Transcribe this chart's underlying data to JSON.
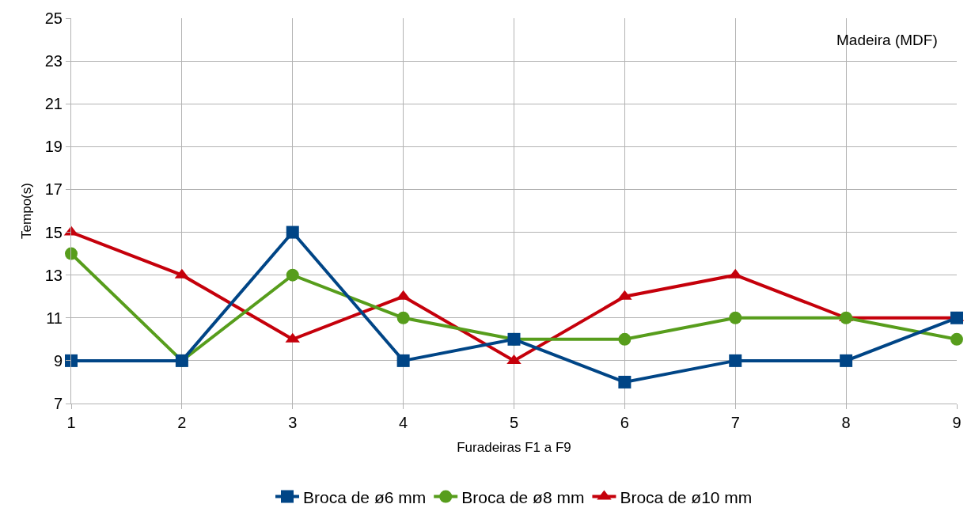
{
  "chart_data": {
    "type": "line",
    "xlabel": "Furadeiras F1 a F9",
    "ylabel": "Tempo(s)",
    "annotations": [
      "Madeira (MDF)"
    ],
    "x": [
      1,
      2,
      3,
      4,
      5,
      6,
      7,
      8,
      9
    ],
    "xlim": [
      1,
      9
    ],
    "xticks": [
      1,
      2,
      3,
      4,
      5,
      6,
      7,
      8,
      9
    ],
    "ylim": [
      7,
      25
    ],
    "yticks": [
      7,
      9,
      11,
      13,
      15,
      17,
      19,
      21,
      23,
      25
    ],
    "grid": true,
    "legend": "bottom",
    "line_style": "solid",
    "series": [
      {
        "name": "Broca de ø6 mm",
        "color": "#004586",
        "marker": "square",
        "values": [
          9,
          9,
          15,
          9,
          10,
          8,
          9,
          9,
          11
        ]
      },
      {
        "name": "Broca de ø8 mm",
        "color": "#579d1c",
        "marker": "circle",
        "values": [
          14,
          9,
          13,
          11,
          10,
          10,
          11,
          11,
          10
        ]
      },
      {
        "name": "Broca de ø10 mm",
        "color": "#c5000b",
        "marker": "triangle",
        "values": [
          15,
          13,
          10,
          12,
          9,
          12,
          13,
          11,
          11
        ]
      }
    ]
  }
}
